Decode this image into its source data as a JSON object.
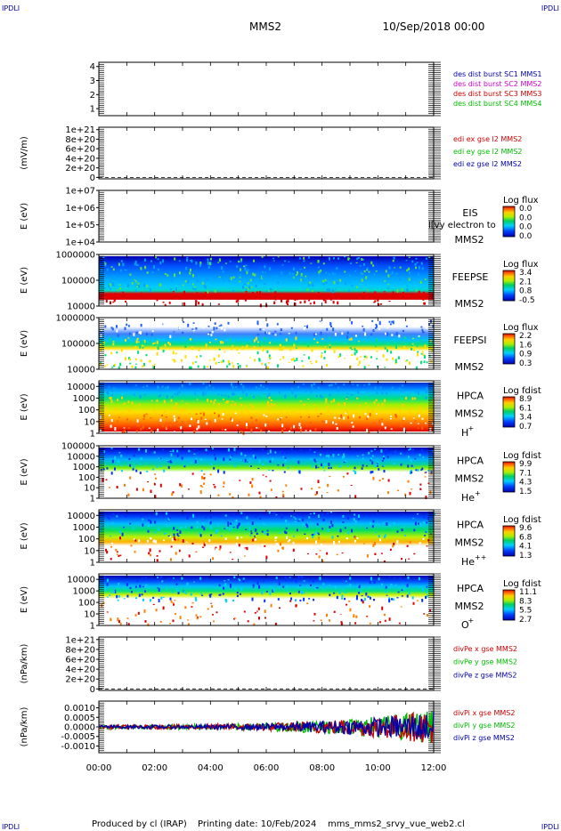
{
  "header": {
    "corner_tl": "IPDLI",
    "corner_tr": "IPDLI",
    "corner_bl": "IPDLI",
    "corner_br": "IPDLI",
    "spacecraft": "MMS2",
    "date": "10/Sep/2018 00:00"
  },
  "footer": {
    "produced_by": "Produced by cl (IRAP)",
    "printing_date": "Printing date: 10/Feb/2024",
    "script_name": "mms_mms2_srvy_vue_web2.cl"
  },
  "colors": {
    "red": "#cc0000",
    "green": "#00bb00",
    "blue": "#0000aa",
    "magenta": "#cc00cc"
  },
  "chart_data": [
    {
      "type": "line",
      "panel": "burst",
      "ylabel": "",
      "yticks": [
        "1",
        "2",
        "3",
        "4"
      ],
      "ylim": [
        0.5,
        4.3
      ],
      "legend": [
        {
          "label": "des dist burst SC1 MMS1",
          "color": "#0000aa"
        },
        {
          "label": "des dist burst SC2 MMS2",
          "color": "#cc00cc"
        },
        {
          "label": "des dist burst SC3 MMS3",
          "color": "#cc0000"
        },
        {
          "label": "des dist burst SC4 MMS4",
          "color": "#00bb00"
        }
      ],
      "series": []
    },
    {
      "type": "line",
      "panel": "edi",
      "ylabel": "(mV/m)",
      "yticks": [
        "0",
        "2e+20",
        "4e+20",
        "6e+20",
        "8e+20",
        "1e+21"
      ],
      "ylim": [
        -3e+19,
        1.05e+21
      ],
      "zero_line": "dashed",
      "legend": [
        {
          "label": "edi ex gse l2 MMS2",
          "color": "#cc0000"
        },
        {
          "label": "edi ey gse l2 MMS2",
          "color": "#00bb00"
        },
        {
          "label": "edi ez gse l2 MMS2",
          "color": "#0000aa"
        }
      ],
      "series": []
    },
    {
      "type": "heatmap",
      "panel": "eis",
      "ylabel": "E (eV)",
      "yscale": "log",
      "yticks": [
        "1e+04",
        "1e+05",
        "1e+06",
        "1e+07"
      ],
      "ylim": [
        10000,
        10000000
      ],
      "instrument": [
        "EIS",
        "MMS2"
      ],
      "overlay_text": "l[vy electron to",
      "colorbar": {
        "title": "Log flux",
        "ticks": [
          "0.0",
          "0.0",
          "0.0",
          "0.0"
        ]
      },
      "empty": true
    },
    {
      "type": "heatmap",
      "panel": "feepse",
      "ylabel": "E (eV)",
      "yscale": "log",
      "yticks": [
        "10000",
        "100000",
        "1000000"
      ],
      "ylim": [
        10000,
        1000000
      ],
      "instrument": [
        "FEEPSE",
        "MMS2"
      ],
      "colorbar": {
        "title": "Log flux",
        "ticks": [
          "3.4",
          "2.1",
          "0.8",
          "-0.5"
        ]
      },
      "empty": false
    },
    {
      "type": "heatmap",
      "panel": "feepsi",
      "ylabel": "E (eV)",
      "yscale": "log",
      "yticks": [
        "10000",
        "100000",
        "1000000"
      ],
      "ylim": [
        10000,
        1000000
      ],
      "instrument": [
        "FEEPSI",
        "MMS2"
      ],
      "colorbar": {
        "title": "Log flux",
        "ticks": [
          "2.2",
          "1.6",
          "0.9",
          "0.3"
        ]
      },
      "empty": false
    },
    {
      "type": "heatmap",
      "panel": "hpca_h",
      "ylabel": "E (eV)",
      "yscale": "log",
      "yticks": [
        "1",
        "10",
        "100",
        "1000",
        "10000"
      ],
      "ylim": [
        1,
        30000
      ],
      "instrument": [
        "HPCA",
        "MMS2"
      ],
      "species": "H",
      "species_charge": "+",
      "colorbar": {
        "title": "Log fdist",
        "ticks": [
          "8.9",
          "6.1",
          "3.4",
          "0.7"
        ]
      },
      "empty": false
    },
    {
      "type": "heatmap",
      "panel": "hpca_he1",
      "ylabel": "E (eV)",
      "yscale": "log",
      "yticks": [
        "1",
        "10",
        "100",
        "1000",
        "10000",
        "100000"
      ],
      "ylim": [
        1,
        100000
      ],
      "instrument": [
        "HPCA",
        "MMS2"
      ],
      "species": "He",
      "species_charge": "+",
      "colorbar": {
        "title": "Log fdist",
        "ticks": [
          "9.9",
          "7.1",
          "4.3",
          "1.5"
        ]
      },
      "empty": false
    },
    {
      "type": "heatmap",
      "panel": "hpca_he2",
      "ylabel": "E (eV)",
      "yscale": "log",
      "yticks": [
        "1",
        "10",
        "100",
        "1000",
        "10000"
      ],
      "ylim": [
        1,
        30000
      ],
      "instrument": [
        "HPCA",
        "MMS2"
      ],
      "species": "He",
      "species_charge": "++",
      "colorbar": {
        "title": "Log fdist",
        "ticks": [
          "9.6",
          "6.8",
          "4.1",
          "1.3"
        ]
      },
      "empty": false
    },
    {
      "type": "heatmap",
      "panel": "hpca_o",
      "ylabel": "E (eV)",
      "yscale": "log",
      "yticks": [
        "1",
        "10",
        "100",
        "1000",
        "10000"
      ],
      "ylim": [
        1,
        30000
      ],
      "instrument": [
        "HPCA",
        "MMS2"
      ],
      "species": "O",
      "species_charge": "+",
      "colorbar": {
        "title": "Log fdist",
        "ticks": [
          "11.1",
          "8.3",
          "5.5",
          "2.7"
        ]
      },
      "empty": false
    },
    {
      "type": "line",
      "panel": "divpe",
      "ylabel": "(nPa/km)",
      "yticks": [
        "0",
        "2e+20",
        "4e+20",
        "6e+20",
        "8e+20",
        "1e+21"
      ],
      "ylim": [
        -3e+19,
        1.05e+21
      ],
      "zero_line": "dashed",
      "legend": [
        {
          "label": "divPe x gse MMS2",
          "color": "#cc0000"
        },
        {
          "label": "divPe y gse MMS2",
          "color": "#00bb00"
        },
        {
          "label": "divPe z gse MMS2",
          "color": "#0000aa"
        }
      ],
      "series": []
    },
    {
      "type": "line",
      "panel": "divpi",
      "ylabel": "(nPa/km)",
      "yticks": [
        "-0.0010",
        "-0.0005",
        "0.0000",
        "0.0005",
        "0.0010"
      ],
      "ylim": [
        -0.00135,
        0.00135
      ],
      "legend": [
        {
          "label": "divPi x gse MMS2",
          "color": "#cc0000"
        },
        {
          "label": "divPi y gse MMS2",
          "color": "#00bb00"
        },
        {
          "label": "divPi z gse MMS2",
          "color": "#0000aa"
        }
      ],
      "noise_amplitude_start": 0.0001,
      "noise_amplitude_end": 0.0009
    }
  ],
  "time_axis": {
    "ticks": [
      "00:00",
      "02:00",
      "04:00",
      "06:00",
      "08:00",
      "10:00",
      "12:00"
    ],
    "range_hours": [
      0,
      12
    ]
  }
}
